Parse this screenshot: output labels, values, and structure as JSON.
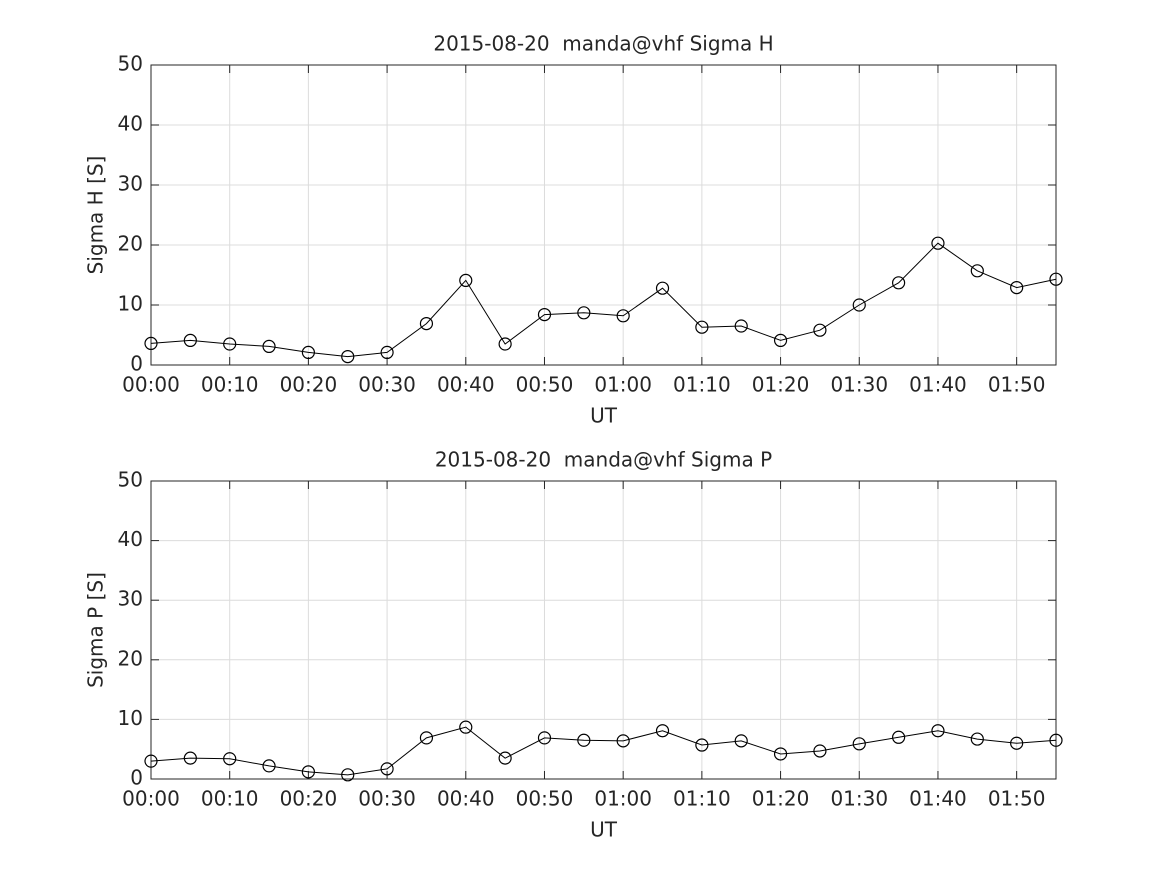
{
  "chart_data": [
    {
      "type": "line",
      "title": "2015-08-20  manda@vhf Sigma H",
      "xlabel": "UT",
      "ylabel": "Sigma H [S]",
      "categories": [
        "00:00",
        null,
        "00:10",
        null,
        "00:20",
        null,
        "00:30",
        null,
        "00:40",
        null,
        "00:50",
        null,
        "01:00",
        null,
        "01:10",
        null,
        "01:20",
        null,
        "01:30",
        null,
        "01:40",
        null,
        "01:50",
        null
      ],
      "values": [
        3.6,
        4.1,
        3.5,
        3.1,
        2.1,
        1.4,
        2.1,
        6.9,
        14.1,
        3.5,
        8.4,
        8.7,
        8.2,
        12.8,
        6.3,
        6.5,
        4.1,
        5.8,
        10.0,
        13.7,
        20.3,
        15.7,
        12.9,
        14.3
      ],
      "color": "#000000",
      "ylim": [
        0,
        50
      ],
      "yticks": [
        0,
        10,
        20,
        30,
        40,
        50
      ],
      "grid": true
    },
    {
      "type": "line",
      "title": "2015-08-20  manda@vhf Sigma P",
      "xlabel": "UT",
      "ylabel": "Sigma P [S]",
      "categories": [
        "00:00",
        null,
        "00:10",
        null,
        "00:20",
        null,
        "00:30",
        null,
        "00:40",
        null,
        "00:50",
        null,
        "01:00",
        null,
        "01:10",
        null,
        "01:20",
        null,
        "01:30",
        null,
        "01:40",
        null,
        "01:50",
        null
      ],
      "values": [
        3.0,
        3.5,
        3.4,
        2.2,
        1.2,
        0.7,
        1.7,
        6.9,
        8.7,
        3.5,
        6.9,
        6.5,
        6.4,
        8.1,
        5.7,
        6.4,
        4.2,
        4.7,
        5.9,
        7.0,
        8.1,
        6.7,
        6.0,
        6.5
      ],
      "color": "#000000",
      "ylim": [
        0,
        50
      ],
      "yticks": [
        0,
        10,
        20,
        30,
        40,
        50
      ],
      "grid": true
    }
  ]
}
